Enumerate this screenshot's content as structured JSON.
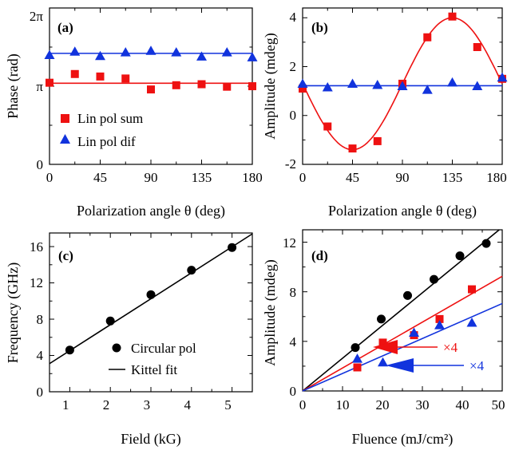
{
  "colors": {
    "red": "#ee1111",
    "blue": "#1133dd",
    "black": "#000000"
  },
  "panels": [
    {
      "id": "a",
      "label": "(a)",
      "xlabel": "Polarization angle θ (deg)",
      "ylabel": "Phase (rad)",
      "xticks": [
        "0",
        "45",
        "90",
        "135",
        "180"
      ],
      "yticks": [
        "0",
        "π",
        "2π"
      ],
      "legend": [
        "Lin pol sum",
        "Lin pol dif"
      ]
    },
    {
      "id": "b",
      "label": "(b)",
      "xlabel": "Polarization angle θ (deg)",
      "ylabel": "Amplitude (mdeg)",
      "xticks": [
        "0",
        "45",
        "90",
        "135",
        "180"
      ],
      "yticks": [
        "-2",
        "0",
        "2",
        "4"
      ]
    },
    {
      "id": "c",
      "label": "(c)",
      "xlabel": "Field (kG)",
      "ylabel": "Frequency (GHz)",
      "xticks": [
        "1",
        "2",
        "3",
        "4",
        "5"
      ],
      "yticks": [
        "0",
        "4",
        "8",
        "12",
        "16"
      ],
      "legend": [
        "Circular pol",
        "Kittel fit"
      ]
    },
    {
      "id": "d",
      "label": "(d)",
      "xlabel": "Fluence (mJ/cm²)",
      "ylabel": "Amplitude (mdeg)",
      "xticks": [
        "0",
        "10",
        "20",
        "30",
        "40",
        "50"
      ],
      "yticks": [
        "0",
        "4",
        "8",
        "12"
      ],
      "annotations": [
        "×4",
        "×4"
      ]
    }
  ],
  "chart_data": [
    {
      "panel": "a",
      "type": "scatter",
      "xlabel": "Polarization angle θ (deg)",
      "ylabel": "Phase (rad)",
      "xlim": [
        0,
        180
      ],
      "ylim": [
        0,
        6.2832
      ],
      "series": [
        {
          "name": "Lin pol sum",
          "marker": "square",
          "color": "#ee1111",
          "x": [
            0,
            22.5,
            45,
            67.5,
            90,
            112.5,
            135,
            157.5,
            180
          ],
          "y": [
            3.28,
            3.63,
            3.53,
            3.45,
            3.01,
            3.18,
            3.22,
            3.12,
            3.14
          ],
          "fit": {
            "type": "constant",
            "y": 3.26
          }
        },
        {
          "name": "Lin pol dif",
          "marker": "triangle",
          "color": "#1133dd",
          "x": [
            0,
            22.5,
            45,
            67.5,
            90,
            112.5,
            135,
            157.5,
            180
          ],
          "y": [
            4.39,
            4.53,
            4.35,
            4.5,
            4.56,
            4.5,
            4.33,
            4.5,
            4.3
          ],
          "fit": {
            "type": "constant",
            "y": 4.46
          }
        }
      ]
    },
    {
      "panel": "b",
      "type": "scatter",
      "xlabel": "Polarization angle θ (deg)",
      "ylabel": "Amplitude (mdeg)",
      "xlim": [
        0,
        180
      ],
      "ylim": [
        -2,
        4.4
      ],
      "series": [
        {
          "name": "Lin pol sum",
          "marker": "square",
          "color": "#ee1111",
          "x": [
            0,
            22.5,
            45,
            67.5,
            90,
            112.5,
            135,
            157.5,
            180
          ],
          "y": [
            1.1,
            -0.45,
            -1.35,
            -1.05,
            1.3,
            3.2,
            4.05,
            2.8,
            1.5
          ],
          "fit": {
            "type": "sine",
            "offset": 1.3,
            "amplitude": -2.7,
            "period_deg": 180
          }
        },
        {
          "name": "Lin pol dif",
          "marker": "triangle",
          "color": "#1133dd",
          "x": [
            0,
            22.5,
            45,
            67.5,
            90,
            112.5,
            135,
            157.5,
            180
          ],
          "y": [
            1.3,
            1.15,
            1.3,
            1.25,
            1.2,
            1.05,
            1.35,
            1.2,
            1.55
          ],
          "fit": {
            "type": "constant",
            "y": 1.22
          }
        }
      ]
    },
    {
      "panel": "c",
      "type": "scatter",
      "xlabel": "Field (kG)",
      "ylabel": "Frequency (GHz)",
      "xlim": [
        0.5,
        5.5
      ],
      "ylim": [
        0,
        17.5
      ],
      "series": [
        {
          "name": "Circular pol",
          "marker": "circle",
          "color": "#000000",
          "x": [
            1,
            2,
            3,
            4,
            5
          ],
          "y": [
            4.6,
            7.8,
            10.7,
            13.4,
            15.9
          ]
        },
        {
          "name": "Kittel fit",
          "type": "line",
          "color": "#000000",
          "x": [
            0.5,
            5.5
          ],
          "y": [
            3.1,
            17.4
          ]
        }
      ]
    },
    {
      "panel": "d",
      "type": "scatter",
      "xlabel": "Fluence (mJ/cm²)",
      "ylabel": "Amplitude (mdeg)",
      "xlim": [
        0,
        50
      ],
      "ylim": [
        0,
        13
      ],
      "series": [
        {
          "marker": "circle",
          "color": "#000000",
          "x": [
            13.2,
            19.7,
            26.3,
            32.9,
            39.4,
            46
          ],
          "y": [
            3.5,
            5.8,
            7.7,
            9.0,
            10.9,
            11.9
          ],
          "fit": {
            "type": "linear",
            "slope": 0.264
          }
        },
        {
          "marker": "square",
          "color": "#ee1111",
          "x": [
            13.7,
            20.1,
            27.9,
            34.3,
            42.4
          ],
          "y": [
            1.9,
            3.9,
            4.5,
            5.8,
            8.2
          ],
          "fit": {
            "type": "linear",
            "slope": 0.185
          }
        },
        {
          "marker": "triangle",
          "color": "#1133dd",
          "x": [
            13.7,
            20.1,
            27.9,
            34.3,
            42.4
          ],
          "y": [
            2.6,
            2.3,
            4.7,
            5.3,
            5.5
          ],
          "fit": {
            "type": "linear",
            "slope": 0.141
          }
        }
      ]
    }
  ]
}
